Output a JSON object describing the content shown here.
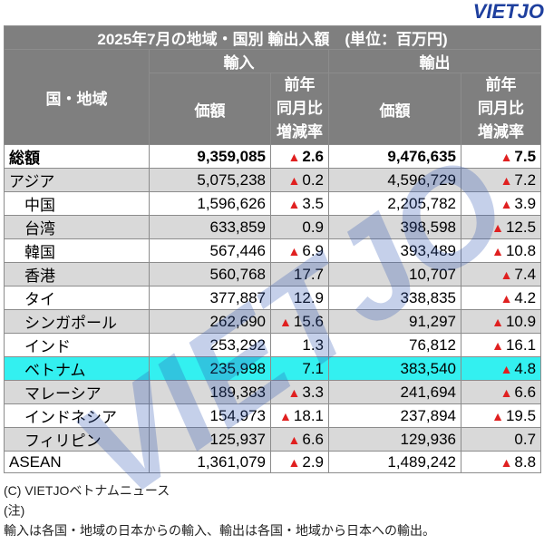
{
  "logo": "VIETJO",
  "watermark": "VIETJO",
  "title": "2025年7月の地域・国別 輸出入額　(単位：百万円)",
  "headers": {
    "region": "国・地域",
    "import": "輸入",
    "export": "輸出",
    "value": "価額",
    "change": "前年\n同月比\n増減率"
  },
  "triangle": "▲",
  "rows": [
    {
      "name": "総額",
      "imp": "9,359,085",
      "impDown": true,
      "impRate": "2.6",
      "exp": "9,476,635",
      "expDown": true,
      "expRate": "7.5",
      "style": "bold",
      "indent": false
    },
    {
      "name": "アジア",
      "imp": "5,075,238",
      "impDown": true,
      "impRate": "0.2",
      "exp": "4,596,729",
      "expDown": true,
      "expRate": "7.2",
      "style": "gray",
      "indent": false
    },
    {
      "name": "中国",
      "imp": "1,596,626",
      "impDown": true,
      "impRate": "3.5",
      "exp": "2,205,782",
      "expDown": true,
      "expRate": "3.9",
      "style": "white",
      "indent": true
    },
    {
      "name": "台湾",
      "imp": "633,859",
      "impDown": false,
      "impRate": "0.9",
      "exp": "398,598",
      "expDown": true,
      "expRate": "12.5",
      "style": "gray",
      "indent": true
    },
    {
      "name": "韓国",
      "imp": "567,446",
      "impDown": true,
      "impRate": "6.9",
      "exp": "393,489",
      "expDown": true,
      "expRate": "10.8",
      "style": "white",
      "indent": true
    },
    {
      "name": "香港",
      "imp": "560,768",
      "impDown": false,
      "impRate": "17.7",
      "exp": "10,707",
      "expDown": true,
      "expRate": "7.4",
      "style": "gray",
      "indent": true
    },
    {
      "name": "タイ",
      "imp": "377,887",
      "impDown": false,
      "impRate": "12.9",
      "exp": "338,835",
      "expDown": true,
      "expRate": "4.2",
      "style": "white",
      "indent": true
    },
    {
      "name": "シンガポール",
      "imp": "262,690",
      "impDown": true,
      "impRate": "15.6",
      "exp": "91,297",
      "expDown": true,
      "expRate": "10.9",
      "style": "gray",
      "indent": true
    },
    {
      "name": "インド",
      "imp": "253,292",
      "impDown": false,
      "impRate": "1.3",
      "exp": "76,812",
      "expDown": true,
      "expRate": "16.1",
      "style": "white",
      "indent": true
    },
    {
      "name": "ベトナム",
      "imp": "235,998",
      "impDown": false,
      "impRate": "7.1",
      "exp": "383,540",
      "expDown": true,
      "expRate": "4.8",
      "style": "cyan",
      "indent": true
    },
    {
      "name": "マレーシア",
      "imp": "189,383",
      "impDown": true,
      "impRate": "3.3",
      "exp": "241,694",
      "expDown": true,
      "expRate": "6.6",
      "style": "gray",
      "indent": true
    },
    {
      "name": "インドネシア",
      "imp": "154,973",
      "impDown": true,
      "impRate": "18.1",
      "exp": "237,894",
      "expDown": true,
      "expRate": "19.5",
      "style": "white",
      "indent": true
    },
    {
      "name": "フィリピン",
      "imp": "125,937",
      "impDown": true,
      "impRate": "6.6",
      "exp": "129,936",
      "expDown": false,
      "expRate": "0.7",
      "style": "gray",
      "indent": true
    },
    {
      "name": "ASEAN",
      "imp": "1,361,079",
      "impDown": true,
      "impRate": "2.9",
      "exp": "1,489,242",
      "expDown": true,
      "expRate": "8.8",
      "style": "white",
      "indent": false
    }
  ],
  "footer": {
    "copyright": "(C) VIETJOベトナムニュース",
    "note_label": "(注)",
    "note": "輸入は各国・地域の日本からの輸入、輸出は各国・地域から日本への輸出。"
  },
  "colors": {
    "header": "#7f7f7f",
    "gray": "#d9d9d9",
    "highlight": "#33f0f0",
    "triangle": "#e02020",
    "logo": "#1e3f9e"
  }
}
